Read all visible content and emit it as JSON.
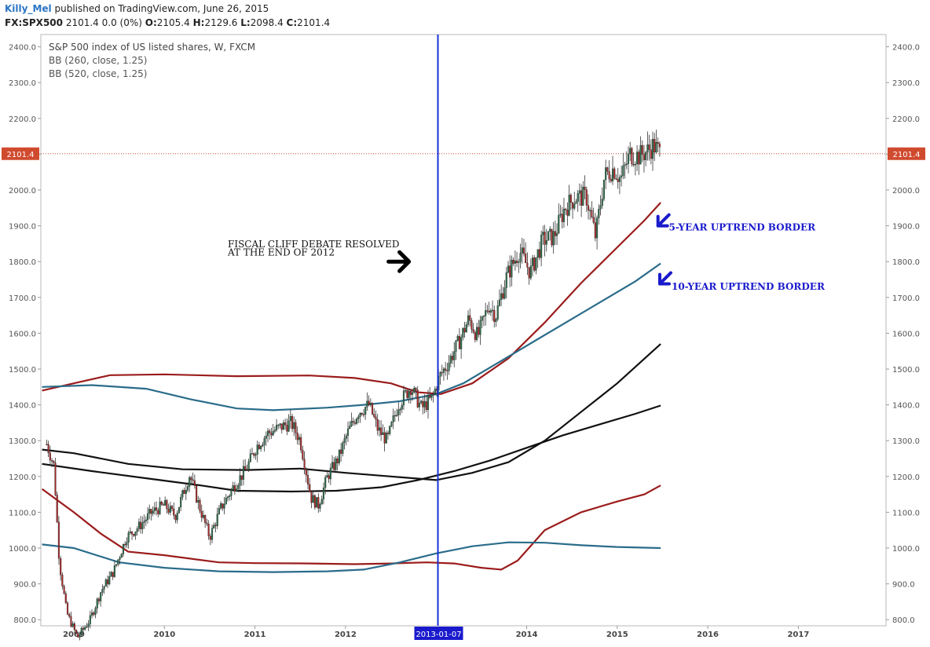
{
  "header": {
    "author": "Killy_Mel",
    "published_text": "published on TradingView.com, June 26, 2015",
    "symbol": "FX:SPX500",
    "last_change": "2101.4 0.0 (0%)",
    "open_label": "O:",
    "open": "2105.4",
    "high_label": "H:",
    "high": "2129.6",
    "low_label": "L:",
    "low": "2098.4",
    "close_label": "C:",
    "close": "2101.4"
  },
  "legend": {
    "title": "S&P 500 index of US listed shares, W, FXCM",
    "indicator1": "BB (260, close, 1.25)",
    "indicator2": "BB (520, close, 1.25)"
  },
  "chart_data": {
    "type": "candlestick",
    "x_ticks": [
      "2009",
      "2010",
      "2011",
      "2012",
      "2014",
      "2015",
      "2016",
      "2017"
    ],
    "x_range": [
      2008.65,
      2018.0
    ],
    "ylim": [
      785,
      2435
    ],
    "y_ticks": [
      "800.0",
      "900.0",
      "1000.0",
      "1100.0",
      "1200.0",
      "1300.0",
      "1400.0",
      "1500.0",
      "1600.0",
      "1700.0",
      "1800.0",
      "1900.0",
      "2000.0",
      "2100.0",
      "2200.0",
      "2300.0",
      "2400.0"
    ],
    "last_price": "2101.4",
    "last_price_color": "#d04a2e",
    "vertical_marker_label": "2013-01-07",
    "vertical_marker_x": 2013.02,
    "vertical_marker_color": "#1a33d6",
    "price_anchors": [
      [
        2008.7,
        1290
      ],
      [
        2008.78,
        1230
      ],
      [
        2008.84,
        960
      ],
      [
        2008.92,
        820
      ],
      [
        2009.04,
        750
      ],
      [
        2009.18,
        800
      ],
      [
        2009.3,
        880
      ],
      [
        2009.44,
        935
      ],
      [
        2009.58,
        1030
      ],
      [
        2009.72,
        1060
      ],
      [
        2009.86,
        1100
      ],
      [
        2010.0,
        1120
      ],
      [
        2010.12,
        1090
      ],
      [
        2010.28,
        1205
      ],
      [
        2010.38,
        1120
      ],
      [
        2010.5,
        1030
      ],
      [
        2010.62,
        1110
      ],
      [
        2010.76,
        1170
      ],
      [
        2010.9,
        1220
      ],
      [
        2011.02,
        1285
      ],
      [
        2011.14,
        1320
      ],
      [
        2011.3,
        1340
      ],
      [
        2011.4,
        1350
      ],
      [
        2011.5,
        1300
      ],
      [
        2011.62,
        1140
      ],
      [
        2011.7,
        1120
      ],
      [
        2011.8,
        1200
      ],
      [
        2011.92,
        1250
      ],
      [
        2012.02,
        1320
      ],
      [
        2012.14,
        1380
      ],
      [
        2012.26,
        1400
      ],
      [
        2012.36,
        1330
      ],
      [
        2012.46,
        1300
      ],
      [
        2012.58,
        1400
      ],
      [
        2012.72,
        1450
      ],
      [
        2012.84,
        1390
      ],
      [
        2012.96,
        1420
      ],
      [
        2013.04,
        1480
      ],
      [
        2013.14,
        1520
      ],
      [
        2013.26,
        1580
      ],
      [
        2013.36,
        1640
      ],
      [
        2013.46,
        1590
      ],
      [
        2013.58,
        1680
      ],
      [
        2013.66,
        1650
      ],
      [
        2013.78,
        1760
      ],
      [
        2013.92,
        1830
      ],
      [
        2014.04,
        1770
      ],
      [
        2014.18,
        1860
      ],
      [
        2014.3,
        1870
      ],
      [
        2014.42,
        1950
      ],
      [
        2014.54,
        1980
      ],
      [
        2014.66,
        1980
      ],
      [
        2014.76,
        1870
      ],
      [
        2014.86,
        2040
      ],
      [
        2014.96,
        2060
      ],
      [
        2015.04,
        2030
      ],
      [
        2015.14,
        2100
      ],
      [
        2015.24,
        2095
      ],
      [
        2015.34,
        2110
      ],
      [
        2015.4,
        2125
      ],
      [
        2015.48,
        2101.4
      ]
    ],
    "bands": [
      {
        "name": "",
        "color": "#9b1c1c",
        "points": [
          [
            2008.65,
            1440
          ],
          [
            2009.0,
            1460
          ],
          [
            2009.4,
            1483
          ],
          [
            2010.0,
            1485
          ],
          [
            2010.8,
            1480
          ],
          [
            2011.6,
            1482
          ],
          [
            2012.1,
            1475
          ],
          [
            2012.5,
            1460
          ],
          [
            2012.8,
            1435
          ],
          [
            2013.05,
            1430
          ],
          [
            2013.4,
            1460
          ],
          [
            2013.8,
            1530
          ],
          [
            2014.2,
            1630
          ],
          [
            2014.6,
            1740
          ],
          [
            2015.0,
            1840
          ],
          [
            2015.3,
            1915
          ],
          [
            2015.48,
            1965
          ]
        ]
      },
      {
        "name": "",
        "color": "#9b1c1c",
        "points": [
          [
            2008.65,
            1165
          ],
          [
            2009.0,
            1100
          ],
          [
            2009.3,
            1040
          ],
          [
            2009.6,
            990
          ],
          [
            2010.0,
            980
          ],
          [
            2010.6,
            960
          ],
          [
            2011.0,
            958
          ],
          [
            2011.6,
            957
          ],
          [
            2012.1,
            955
          ],
          [
            2012.5,
            957
          ],
          [
            2012.9,
            960
          ],
          [
            2013.2,
            957
          ],
          [
            2013.5,
            945
          ],
          [
            2013.72,
            940
          ],
          [
            2013.9,
            965
          ],
          [
            2014.2,
            1050
          ],
          [
            2014.6,
            1100
          ],
          [
            2015.0,
            1130
          ],
          [
            2015.3,
            1150
          ],
          [
            2015.48,
            1175
          ]
        ]
      },
      {
        "name": "",
        "color": "#2a6c8a",
        "points": [
          [
            2008.65,
            1450
          ],
          [
            2009.2,
            1455
          ],
          [
            2009.8,
            1445
          ],
          [
            2010.3,
            1415
          ],
          [
            2010.8,
            1390
          ],
          [
            2011.2,
            1385
          ],
          [
            2011.8,
            1392
          ],
          [
            2012.2,
            1400
          ],
          [
            2012.6,
            1410
          ],
          [
            2013.0,
            1430
          ],
          [
            2013.3,
            1460
          ],
          [
            2013.7,
            1520
          ],
          [
            2014.1,
            1580
          ],
          [
            2014.5,
            1640
          ],
          [
            2014.9,
            1700
          ],
          [
            2015.2,
            1745
          ],
          [
            2015.48,
            1795
          ]
        ]
      },
      {
        "name": "",
        "color": "#2a6c8a",
        "points": [
          [
            2008.65,
            1010
          ],
          [
            2009.0,
            1000
          ],
          [
            2009.5,
            960
          ],
          [
            2010.0,
            945
          ],
          [
            2010.6,
            935
          ],
          [
            2011.2,
            933
          ],
          [
            2011.8,
            935
          ],
          [
            2012.2,
            940
          ],
          [
            2012.6,
            960
          ],
          [
            2013.0,
            985
          ],
          [
            2013.4,
            1005
          ],
          [
            2013.8,
            1016
          ],
          [
            2014.2,
            1015
          ],
          [
            2014.6,
            1008
          ],
          [
            2015.0,
            1003
          ],
          [
            2015.48,
            1000
          ]
        ]
      },
      {
        "name": "",
        "color": "#111111",
        "points": [
          [
            2008.65,
            1275
          ],
          [
            2009.0,
            1265
          ],
          [
            2009.6,
            1235
          ],
          [
            2010.2,
            1220
          ],
          [
            2010.9,
            1218
          ],
          [
            2011.5,
            1222
          ],
          [
            2012.0,
            1210
          ],
          [
            2012.5,
            1200
          ],
          [
            2013.0,
            1190
          ],
          [
            2013.4,
            1210
          ],
          [
            2013.8,
            1240
          ],
          [
            2014.2,
            1300
          ],
          [
            2014.6,
            1380
          ],
          [
            2015.0,
            1460
          ],
          [
            2015.48,
            1570
          ]
        ]
      },
      {
        "name": "",
        "color": "#111111",
        "points": [
          [
            2008.65,
            1235
          ],
          [
            2009.2,
            1215
          ],
          [
            2009.8,
            1195
          ],
          [
            2010.4,
            1175
          ],
          [
            2010.8,
            1160
          ],
          [
            2011.4,
            1158
          ],
          [
            2011.9,
            1160
          ],
          [
            2012.4,
            1170
          ],
          [
            2012.8,
            1190
          ],
          [
            2013.2,
            1215
          ],
          [
            2013.6,
            1245
          ],
          [
            2014.0,
            1280
          ],
          [
            2014.4,
            1315
          ],
          [
            2014.8,
            1345
          ],
          [
            2015.2,
            1375
          ],
          [
            2015.48,
            1398
          ]
        ]
      }
    ],
    "annotations": [
      {
        "text": "FISCAL CLIFF DEBATE RESOLVED",
        "color": "#111111",
        "x": 2010.7,
        "y": 1840
      },
      {
        "text": "AT THE END OF 2012",
        "color": "#111111",
        "x": 2010.7,
        "y": 1817
      },
      {
        "text": "5-YEAR UPTREND BORDER",
        "color": "#1a1acc",
        "x": 2015.57,
        "y": 1887
      },
      {
        "text": "10-YEAR UPTREND BORDER",
        "color": "#1a1acc",
        "x": 2015.6,
        "y": 1722
      }
    ]
  }
}
